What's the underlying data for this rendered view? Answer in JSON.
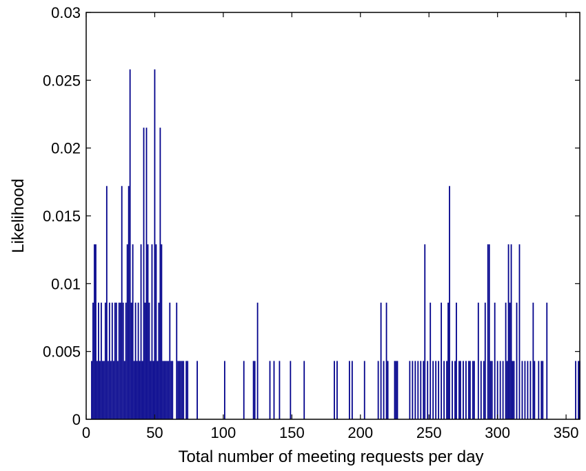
{
  "chart_data": {
    "type": "bar",
    "title": "",
    "xlabel": "Total number of meeting requests per day",
    "ylabel": "Likelihood",
    "xlim": [
      0,
      360
    ],
    "ylim": [
      0,
      0.03
    ],
    "grid": false,
    "bar_color": "#00008B",
    "x_ticks": [
      "0",
      "50",
      "100",
      "150",
      "200",
      "250",
      "300",
      "350"
    ],
    "x_tick_values": [
      0,
      50,
      100,
      150,
      200,
      250,
      300,
      350
    ],
    "y_ticks": [
      "0",
      "0.005",
      "0.01",
      "0.015",
      "0.02",
      "0.025",
      "0.03"
    ],
    "y_tick_values": [
      0,
      0.005,
      0.01,
      0.015,
      0.02,
      0.025,
      0.03
    ],
    "points": [
      [
        4,
        0.0043
      ],
      [
        5,
        0.0086
      ],
      [
        6,
        0.0129
      ],
      [
        7,
        0.0129
      ],
      [
        8,
        0.0043
      ],
      [
        9,
        0.0086
      ],
      [
        10,
        0.0043
      ],
      [
        11,
        0.0086
      ],
      [
        12,
        0.0043
      ],
      [
        13,
        0.0043
      ],
      [
        14,
        0.0086
      ],
      [
        15,
        0.0172
      ],
      [
        16,
        0.0043
      ],
      [
        17,
        0.0086
      ],
      [
        18,
        0.0043
      ],
      [
        19,
        0.0086
      ],
      [
        20,
        0.0043
      ],
      [
        21,
        0.0086
      ],
      [
        22,
        0.0086
      ],
      [
        23,
        0.0043
      ],
      [
        24,
        0.0086
      ],
      [
        25,
        0.0086
      ],
      [
        26,
        0.0172
      ],
      [
        27,
        0.0086
      ],
      [
        28,
        0.0043
      ],
      [
        29,
        0.0086
      ],
      [
        30,
        0.0129
      ],
      [
        31,
        0.0172
      ],
      [
        32,
        0.0258
      ],
      [
        33,
        0.0086
      ],
      [
        34,
        0.0129
      ],
      [
        35,
        0.0043
      ],
      [
        36,
        0.0086
      ],
      [
        37,
        0.0043
      ],
      [
        38,
        0.0086
      ],
      [
        39,
        0.0043
      ],
      [
        40,
        0.0129
      ],
      [
        41,
        0.0043
      ],
      [
        42,
        0.0215
      ],
      [
        43,
        0.0086
      ],
      [
        44,
        0.0215
      ],
      [
        45,
        0.0129
      ],
      [
        46,
        0.0086
      ],
      [
        47,
        0.0043
      ],
      [
        48,
        0.0129
      ],
      [
        49,
        0.0043
      ],
      [
        50,
        0.0258
      ],
      [
        51,
        0.0129
      ],
      [
        52,
        0.0043
      ],
      [
        53,
        0.0086
      ],
      [
        54,
        0.0215
      ],
      [
        55,
        0.0129
      ],
      [
        56,
        0.0043
      ],
      [
        57,
        0.0043
      ],
      [
        58,
        0.0043
      ],
      [
        59,
        0.0043
      ],
      [
        60,
        0.0043
      ],
      [
        61,
        0.0086
      ],
      [
        62,
        0.0043
      ],
      [
        63,
        0.0043
      ],
      [
        66,
        0.0086
      ],
      [
        67,
        0.0043
      ],
      [
        68,
        0.0043
      ],
      [
        69,
        0.0043
      ],
      [
        70,
        0.0043
      ],
      [
        71,
        0.0043
      ],
      [
        73,
        0.0043
      ],
      [
        74,
        0.0043
      ],
      [
        81,
        0.0043
      ],
      [
        101,
        0.0043
      ],
      [
        115,
        0.0043
      ],
      [
        122,
        0.0043
      ],
      [
        123,
        0.0043
      ],
      [
        125,
        0.0086
      ],
      [
        134,
        0.0043
      ],
      [
        137,
        0.0043
      ],
      [
        141,
        0.0043
      ],
      [
        149,
        0.0043
      ],
      [
        159,
        0.0043
      ],
      [
        181,
        0.0043
      ],
      [
        183,
        0.0043
      ],
      [
        192,
        0.0043
      ],
      [
        194,
        0.0043
      ],
      [
        203,
        0.0043
      ],
      [
        213,
        0.0043
      ],
      [
        215,
        0.0086
      ],
      [
        217,
        0.0043
      ],
      [
        219,
        0.0086
      ],
      [
        220,
        0.0043
      ],
      [
        225,
        0.0043
      ],
      [
        226,
        0.0043
      ],
      [
        227,
        0.0043
      ],
      [
        236,
        0.0043
      ],
      [
        238,
        0.0043
      ],
      [
        240,
        0.0043
      ],
      [
        242,
        0.0043
      ],
      [
        244,
        0.0043
      ],
      [
        246,
        0.0043
      ],
      [
        247,
        0.0129
      ],
      [
        249,
        0.0043
      ],
      [
        251,
        0.0086
      ],
      [
        253,
        0.0043
      ],
      [
        255,
        0.0043
      ],
      [
        257,
        0.0043
      ],
      [
        259,
        0.0086
      ],
      [
        261,
        0.0043
      ],
      [
        263,
        0.0043
      ],
      [
        264,
        0.0086
      ],
      [
        265,
        0.0172
      ],
      [
        267,
        0.0043
      ],
      [
        269,
        0.0043
      ],
      [
        270,
        0.0086
      ],
      [
        272,
        0.0043
      ],
      [
        273,
        0.0043
      ],
      [
        275,
        0.0043
      ],
      [
        277,
        0.0043
      ],
      [
        279,
        0.0043
      ],
      [
        280,
        0.0043
      ],
      [
        282,
        0.0043
      ],
      [
        283,
        0.0043
      ],
      [
        286,
        0.0086
      ],
      [
        288,
        0.0043
      ],
      [
        290,
        0.0043
      ],
      [
        291,
        0.0086
      ],
      [
        293,
        0.0129
      ],
      [
        294,
        0.0129
      ],
      [
        295,
        0.0043
      ],
      [
        296,
        0.0043
      ],
      [
        298,
        0.0086
      ],
      [
        300,
        0.0043
      ],
      [
        302,
        0.0043
      ],
      [
        304,
        0.0043
      ],
      [
        306,
        0.0086
      ],
      [
        307,
        0.0043
      ],
      [
        308,
        0.0129
      ],
      [
        309,
        0.0086
      ],
      [
        310,
        0.0129
      ],
      [
        311,
        0.0043
      ],
      [
        312,
        0.0043
      ],
      [
        314,
        0.0086
      ],
      [
        316,
        0.0129
      ],
      [
        318,
        0.0043
      ],
      [
        320,
        0.0043
      ],
      [
        322,
        0.0043
      ],
      [
        324,
        0.0043
      ],
      [
        326,
        0.0086
      ],
      [
        327,
        0.0043
      ],
      [
        330,
        0.0043
      ],
      [
        332,
        0.0043
      ],
      [
        333,
        0.0043
      ],
      [
        336,
        0.0086
      ],
      [
        357,
        0.0043
      ],
      [
        359,
        0.0043
      ],
      [
        360,
        0.0043
      ]
    ]
  }
}
